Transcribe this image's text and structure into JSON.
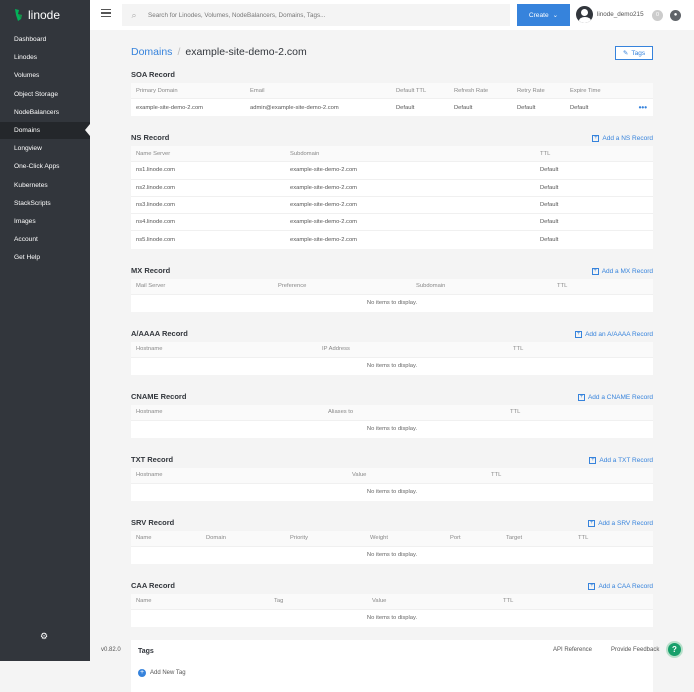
{
  "brand": {
    "name": "linode",
    "accent": "#3683dc",
    "sidebar_bg": "#32363c"
  },
  "sidebar": {
    "items": [
      {
        "label": "Dashboard"
      },
      {
        "label": "Linodes"
      },
      {
        "label": "Volumes"
      },
      {
        "label": "Object Storage"
      },
      {
        "label": "NodeBalancers"
      },
      {
        "label": "Domains",
        "active": true
      },
      {
        "label": "Longview"
      },
      {
        "label": "One-Click Apps"
      },
      {
        "label": "Kubernetes"
      },
      {
        "label": "StackScripts"
      },
      {
        "label": "Images"
      },
      {
        "label": "Account"
      },
      {
        "label": "Get Help"
      }
    ],
    "settings_icon": "gear-icon"
  },
  "header": {
    "search_placeholder": "Search for Linodes, Volumes, NodeBalancers, Domains, Tags...",
    "create_label": "Create",
    "username": "linode_demo215",
    "notification_count": "0"
  },
  "breadcrumb": {
    "parent": "Domains",
    "separator": "/",
    "current": "example-site-demo-2.com"
  },
  "tags_button": "Tags",
  "sections": [
    {
      "title": "SOA Record",
      "cols": [
        "Primary Domain",
        "Email",
        "Default TTL",
        "Refresh Rate",
        "Retry Rate",
        "Expire Time"
      ],
      "rows": [
        [
          "example-site-demo-2.com",
          "admin@example-site-demo-2.com",
          "Default",
          "Default",
          "Default",
          "Default"
        ]
      ],
      "menu": "•••"
    },
    {
      "title": "NS Record",
      "add": "Add a NS Record",
      "cols": [
        "Name Server",
        "Subdomain",
        "TTL"
      ],
      "rows": [
        [
          "ns1.linode.com",
          "example-site-demo-2.com",
          "Default"
        ],
        [
          "ns2.linode.com",
          "example-site-demo-2.com",
          "Default"
        ],
        [
          "ns3.linode.com",
          "example-site-demo-2.com",
          "Default"
        ],
        [
          "ns4.linode.com",
          "example-site-demo-2.com",
          "Default"
        ],
        [
          "ns5.linode.com",
          "example-site-demo-2.com",
          "Default"
        ]
      ]
    },
    {
      "title": "MX Record",
      "add": "Add a MX Record",
      "cols": [
        "Mail Server",
        "Preference",
        "Subdomain",
        "TTL"
      ],
      "empty": "No items to display."
    },
    {
      "title": "A/AAAA Record",
      "add": "Add an A/AAAA Record",
      "cols": [
        "Hostname",
        "IP Address",
        "TTL"
      ],
      "empty": "No items to display."
    },
    {
      "title": "CNAME Record",
      "add": "Add a CNAME Record",
      "cols": [
        "Hostname",
        "Aliases to",
        "TTL"
      ],
      "empty": "No items to display."
    },
    {
      "title": "TXT Record",
      "add": "Add a TXT Record",
      "cols": [
        "Hostname",
        "Value",
        "TTL"
      ],
      "empty": "No items to display."
    },
    {
      "title": "SRV Record",
      "add": "Add a SRV Record",
      "cols": [
        "Name",
        "Domain",
        "Priority",
        "Weight",
        "Port",
        "Target",
        "TTL"
      ],
      "empty": "No items to display."
    },
    {
      "title": "CAA Record",
      "add": "Add a CAA Record",
      "cols": [
        "Name",
        "Tag",
        "Value",
        "TTL"
      ],
      "empty": "No items to display."
    }
  ],
  "tags_panel": {
    "title": "Tags",
    "add_label": "Add New Tag"
  },
  "footer": {
    "version": "v0.82.0",
    "api_reference": "API Reference",
    "feedback": "Provide Feedback",
    "help": "?"
  }
}
